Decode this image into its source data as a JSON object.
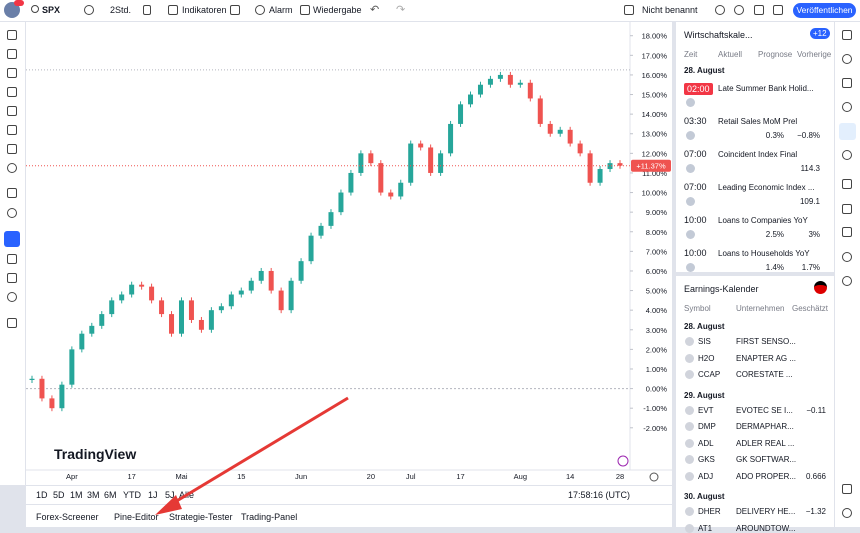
{
  "toolbar": {
    "symbol": "SPX",
    "interval": "2Std.",
    "indicators": "Indikatoren",
    "alert": "Alarm",
    "replay": "Wiedergabe",
    "layout_name": "Nicht benannt",
    "publish": "Veröffentlichen"
  },
  "chart_data": {
    "type": "candlestick",
    "categories": [
      null,
      null,
      null,
      null,
      "Apr",
      null,
      null,
      null,
      null,
      null,
      "17",
      null,
      null,
      null,
      null,
      "Mai",
      null,
      null,
      null,
      null,
      null,
      "15",
      null,
      null,
      null,
      null,
      null,
      "Jun",
      null,
      null,
      null,
      null,
      null,
      null,
      "20",
      null,
      null,
      null,
      "Jul",
      null,
      null,
      null,
      null,
      "17",
      null,
      null,
      null,
      null,
      null,
      "Aug",
      null,
      null,
      null,
      null,
      "14",
      null,
      null,
      null,
      null,
      "28"
    ],
    "values": [
      0.5,
      -0.5,
      -1.0,
      0.2,
      2.0,
      2.8,
      3.2,
      3.8,
      4.5,
      4.8,
      5.3,
      5.2,
      4.5,
      3.8,
      2.8,
      4.5,
      3.5,
      3.0,
      4.0,
      4.2,
      4.8,
      5.0,
      5.5,
      6.0,
      5.0,
      4.0,
      5.5,
      6.5,
      7.8,
      8.3,
      9.0,
      10.0,
      11.0,
      12.0,
      11.5,
      10.0,
      9.8,
      10.5,
      12.5,
      12.3,
      11.0,
      12.0,
      13.5,
      14.5,
      15.0,
      15.5,
      15.8,
      16.0,
      15.5,
      15.6,
      14.8,
      13.5,
      13.0,
      13.2,
      12.5,
      12.0,
      10.5,
      11.2,
      11.5,
      11.37
    ],
    "last_label": "+11.37%",
    "up_color": "#26a69a",
    "down_color": "#ef5350",
    "ylim": [
      -4,
      18.7
    ],
    "yticks": [
      {
        "value": -2,
        "label": "-2.00%"
      },
      {
        "value": -1,
        "label": "-1.00%"
      },
      {
        "value": 0,
        "label": "0.00%"
      },
      {
        "value": 1,
        "label": "1.00%"
      },
      {
        "value": 2,
        "label": "2.00%"
      },
      {
        "value": 3,
        "label": "3.00%"
      },
      {
        "value": 4,
        "label": "4.00%"
      },
      {
        "value": 5,
        "label": "5.00%"
      },
      {
        "value": 6,
        "label": "6.00%"
      },
      {
        "value": 7,
        "label": "7.00%"
      },
      {
        "value": 8,
        "label": "8.00%"
      },
      {
        "value": 9,
        "label": "9.00%"
      },
      {
        "value": 10,
        "label": "10.00%"
      },
      {
        "value": 11,
        "label": "11.00%"
      },
      {
        "value": 12,
        "label": "12.00%"
      },
      {
        "value": 13,
        "label": "13.00%"
      },
      {
        "value": 14,
        "label": "14.00%"
      },
      {
        "value": 15,
        "label": "15.00%"
      },
      {
        "value": 16,
        "label": "16.00%"
      },
      {
        "value": 17,
        "label": "17.00%"
      },
      {
        "value": 18,
        "label": "18.00%"
      }
    ],
    "watermark": "TradingView"
  },
  "chart_footer": {
    "timeframes": [
      "1D",
      "5D",
      "1M",
      "3M",
      "6M",
      "YTD",
      "1J",
      "5J",
      "Alle"
    ],
    "clock": "17:58:16 (UTC)"
  },
  "bottom_tabs": [
    "Forex-Screener",
    "Pine-Editor",
    "Strategie-Tester",
    "Trading-Panel"
  ],
  "economic_calendar": {
    "title": "Wirtschaftskale...",
    "more": "+12",
    "columns": [
      "Zeit",
      "Aktuell",
      "Prognose",
      "Vorherige"
    ],
    "date": "28. August",
    "events": [
      {
        "time": "02:00",
        "name": "Late Summer Bank Holid..."
      },
      {
        "time": "03:30",
        "name": "Retail Sales MoM Prel",
        "forecast": "0.3%",
        "previous": "−0.8%"
      },
      {
        "time": "07:00",
        "name": "Coincident Index Final",
        "previous": "114.3"
      },
      {
        "time": "07:00",
        "name": "Leading Economic Index ...",
        "previous": "109.1"
      },
      {
        "time": "10:00",
        "name": "Loans to Companies YoY",
        "forecast": "2.5%",
        "previous": "3%"
      },
      {
        "time": "10:00",
        "name": "Loans to Households YoY",
        "forecast": "1.4%",
        "previous": "1.7%"
      }
    ]
  },
  "earnings_calendar": {
    "title": "Earnings-Kalender",
    "columns": [
      "Symbol",
      "Unternehmen",
      "Geschätzt"
    ],
    "days": [
      {
        "date": "28. August",
        "rows": [
          {
            "symbol": "SIS",
            "company": "FIRST SENSO..."
          },
          {
            "symbol": "H2O",
            "company": "ENAPTER AG ..."
          },
          {
            "symbol": "CCAP",
            "company": "CORESTATE ..."
          }
        ]
      },
      {
        "date": "29. August",
        "rows": [
          {
            "symbol": "EVT",
            "company": "EVOTEC SE I...",
            "estimate": "−0.11"
          },
          {
            "symbol": "DMP",
            "company": "DERMAPHAR..."
          },
          {
            "symbol": "ADL",
            "company": "ADLER REAL ..."
          },
          {
            "symbol": "GKS",
            "company": "GK SOFTWAR..."
          },
          {
            "symbol": "ADJ",
            "company": "ADO PROPER...",
            "estimate": "0.666"
          }
        ]
      },
      {
        "date": "30. August",
        "rows": [
          {
            "symbol": "DHER",
            "company": "DELIVERY HE...",
            "estimate": "−1.32"
          },
          {
            "symbol": "AT1",
            "company": "AROUNDTOW..."
          }
        ]
      }
    ]
  }
}
